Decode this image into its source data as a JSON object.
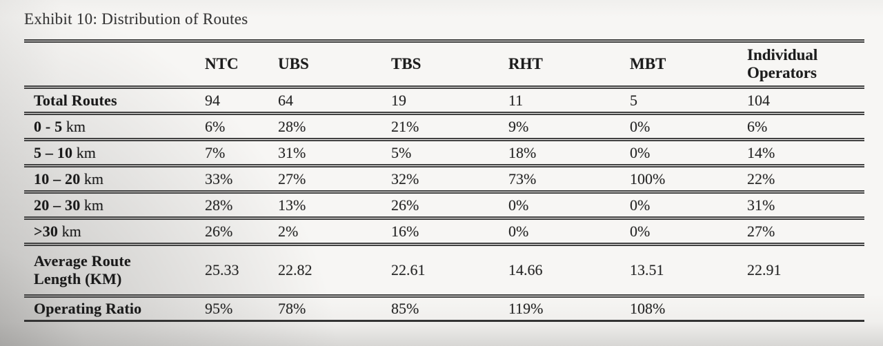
{
  "title": "Exhibit 10: Distribution of Routes",
  "colors": {
    "ink": "#1f1f1f",
    "rule_line": "#3b3b3b",
    "paper": "#f7f6f4"
  },
  "table": {
    "corner_header": "",
    "columns": [
      "NTC",
      "UBS",
      "TBS",
      "RHT",
      "MBT",
      "Individual Operators"
    ],
    "rows": [
      {
        "strong": "Total Routes",
        "rest": "",
        "values": [
          "94",
          "64",
          "19",
          "11",
          "5",
          "104"
        ]
      },
      {
        "strong": "0 - 5",
        "rest": " km",
        "values": [
          "6%",
          "28%",
          "21%",
          "9%",
          "0%",
          "6%"
        ]
      },
      {
        "strong": "5 – 10",
        "rest": " km",
        "values": [
          "7%",
          "31%",
          "5%",
          "18%",
          "0%",
          "14%"
        ]
      },
      {
        "strong": "10 – 20",
        "rest": " km",
        "values": [
          "33%",
          "27%",
          "32%",
          "73%",
          "100%",
          "22%"
        ]
      },
      {
        "strong": "20 – 30",
        "rest": " km",
        "values": [
          "28%",
          "13%",
          "26%",
          "0%",
          "0%",
          "31%"
        ]
      },
      {
        "strong": ">30",
        "rest": " km",
        "values": [
          "26%",
          "2%",
          "16%",
          "0%",
          "0%",
          "27%"
        ]
      },
      {
        "strong": "Average Route\nLength (KM)",
        "rest": "",
        "values": [
          "25.33",
          "22.82",
          "22.61",
          "14.66",
          "13.51",
          "22.91"
        ]
      },
      {
        "strong": "Operating Ratio",
        "rest": "",
        "values": [
          "95%",
          "78%",
          "85%",
          "119%",
          "108%",
          ""
        ]
      }
    ]
  }
}
